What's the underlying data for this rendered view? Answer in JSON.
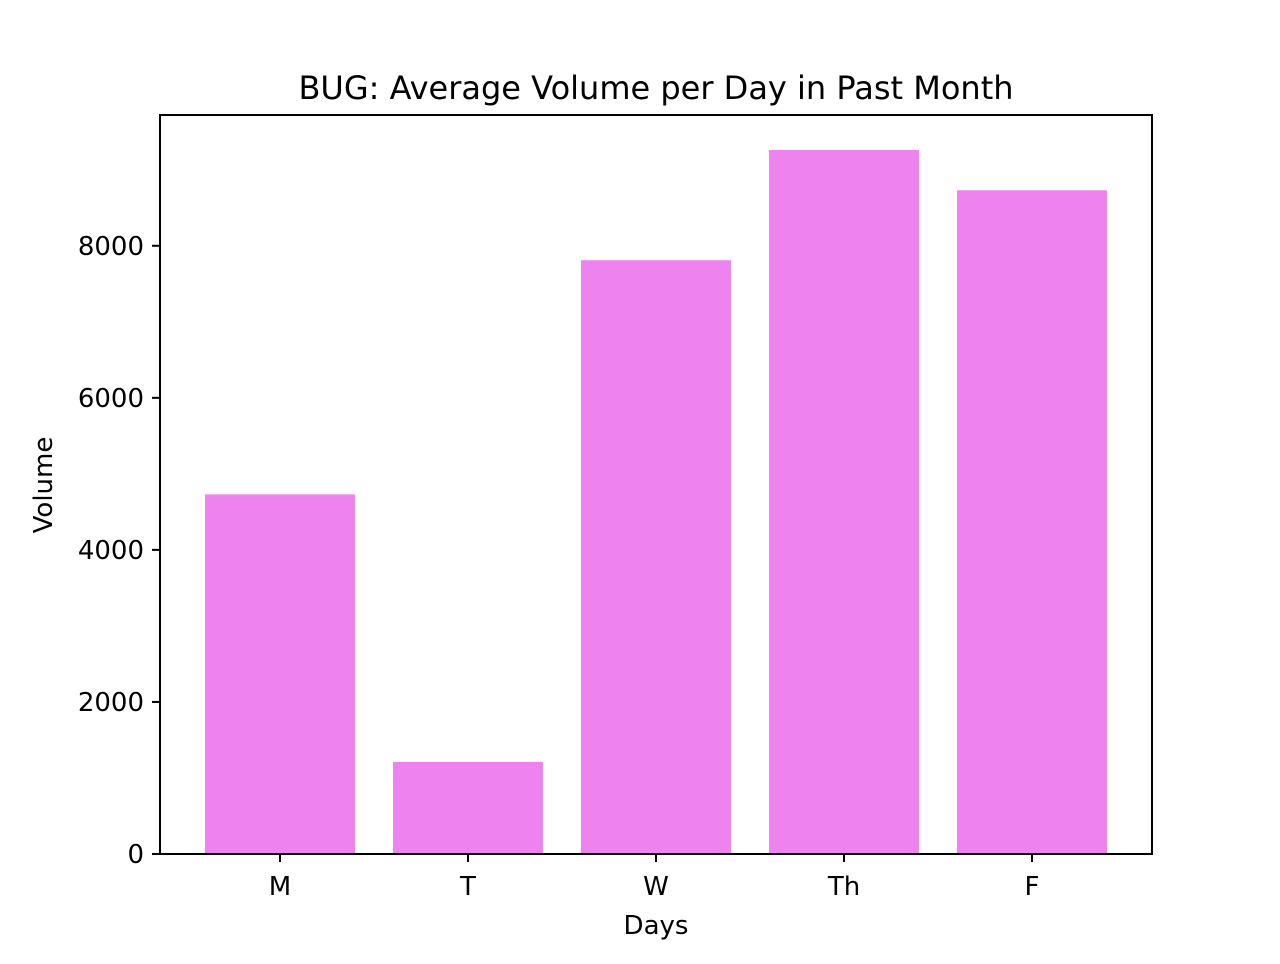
{
  "chart_data": {
    "type": "bar",
    "title": "BUG: Average Volume per Day in Past Month",
    "xlabel": "Days",
    "ylabel": "Volume",
    "categories": [
      "M",
      "T",
      "W",
      "Th",
      "F"
    ],
    "values": [
      4730,
      1210,
      7810,
      9260,
      8730
    ],
    "ylim": [
      0,
      9720
    ],
    "yticks": [
      0,
      2000,
      4000,
      6000,
      8000
    ],
    "ytick_labels": [
      "0",
      "2000",
      "4000",
      "6000",
      "8000"
    ],
    "grid": false,
    "bar_color": "#EE82EE"
  }
}
